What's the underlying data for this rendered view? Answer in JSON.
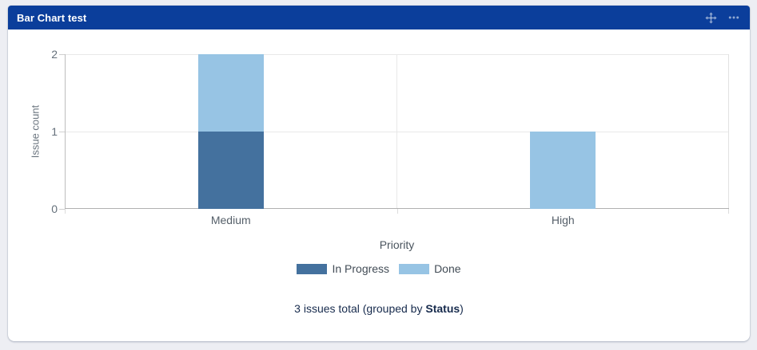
{
  "gadget": {
    "title": "Bar Chart test",
    "header_color": "#0b3e9b",
    "icons": [
      "move-icon",
      "more-icon"
    ]
  },
  "chart_data": {
    "type": "bar",
    "stacked": true,
    "categories": [
      "Medium",
      "High"
    ],
    "series": [
      {
        "name": "In Progress",
        "color": "#44719e",
        "values": [
          1,
          0
        ]
      },
      {
        "name": "Done",
        "color": "#97c4e4",
        "values": [
          1,
          1
        ]
      }
    ],
    "title": "",
    "xlabel": "Priority",
    "ylabel": "Issue count",
    "yticks": [
      0,
      1,
      2
    ],
    "ylim": [
      0,
      2
    ],
    "grid": true,
    "legend_position": "bottom"
  },
  "footer": {
    "prefix": "3 issues total (grouped by ",
    "group_by": "Status",
    "suffix": ")"
  }
}
